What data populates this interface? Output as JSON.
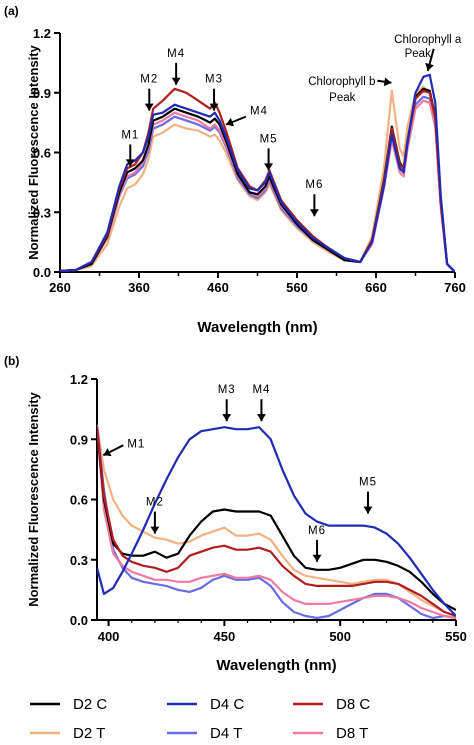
{
  "legend": [
    {
      "name": "D2 C",
      "color": "#000000"
    },
    {
      "name": "D2 T",
      "color": "#f4b183"
    },
    {
      "name": "D4 C",
      "color": "#1f2bb5"
    },
    {
      "name": "D4 T",
      "color": "#6b6be8"
    },
    {
      "name": "D8 C",
      "color": "#b01e1e"
    },
    {
      "name": "D8 T",
      "color": "#f07aa0"
    }
  ],
  "chart_data": [
    {
      "panel_label": "(a)",
      "type": "line",
      "xlabel": "Wavelength (nm)",
      "ylabel": "Normalized Fluorescence Intensity",
      "xlim": [
        260,
        760
      ],
      "ylim": [
        0,
        1.2
      ],
      "xticks": [
        "260",
        "360",
        "460",
        "560",
        "660",
        "760"
      ],
      "yticks": [
        "0.0",
        "0.3",
        "0.6",
        "0.9",
        "1.2"
      ],
      "x": [
        260,
        280,
        300,
        320,
        335,
        345,
        355,
        365,
        372,
        378,
        390,
        405,
        420,
        435,
        450,
        456,
        462,
        470,
        485,
        500,
        510,
        520,
        525,
        530,
        540,
        560,
        580,
        600,
        620,
        640,
        655,
        670,
        680,
        690,
        695,
        700,
        710,
        720,
        728,
        735,
        742,
        750,
        760
      ],
      "series": [
        {
          "name": "D2 C",
          "color": "#000000",
          "values": [
            0.005,
            0.01,
            0.04,
            0.18,
            0.4,
            0.5,
            0.52,
            0.56,
            0.64,
            0.76,
            0.78,
            0.82,
            0.8,
            0.78,
            0.75,
            0.77,
            0.74,
            0.66,
            0.49,
            0.4,
            0.39,
            0.43,
            0.48,
            0.43,
            0.34,
            0.24,
            0.16,
            0.11,
            0.06,
            0.05,
            0.16,
            0.46,
            0.73,
            0.55,
            0.52,
            0.66,
            0.88,
            0.92,
            0.91,
            0.78,
            0.35,
            0.04,
            0.0
          ]
        },
        {
          "name": "D2 T",
          "color": "#f4b183",
          "values": [
            0.005,
            0.01,
            0.03,
            0.14,
            0.33,
            0.42,
            0.44,
            0.49,
            0.57,
            0.68,
            0.7,
            0.74,
            0.72,
            0.71,
            0.68,
            0.69,
            0.66,
            0.6,
            0.46,
            0.38,
            0.36,
            0.4,
            0.44,
            0.4,
            0.31,
            0.22,
            0.15,
            0.1,
            0.06,
            0.05,
            0.18,
            0.52,
            0.91,
            0.62,
            0.58,
            0.73,
            0.9,
            0.93,
            0.9,
            0.77,
            0.34,
            0.04,
            0.0
          ]
        },
        {
          "name": "D4 C",
          "color": "#1f2bb5",
          "values": [
            0.005,
            0.01,
            0.05,
            0.2,
            0.43,
            0.54,
            0.56,
            0.6,
            0.68,
            0.79,
            0.8,
            0.84,
            0.82,
            0.8,
            0.78,
            0.8,
            0.76,
            0.68,
            0.51,
            0.42,
            0.41,
            0.45,
            0.5,
            0.45,
            0.35,
            0.25,
            0.17,
            0.12,
            0.07,
            0.05,
            0.15,
            0.43,
            0.69,
            0.52,
            0.5,
            0.65,
            0.9,
            0.98,
            0.99,
            0.85,
            0.38,
            0.04,
            0.0
          ]
        },
        {
          "name": "D4 T",
          "color": "#6b6be8",
          "values": [
            0.005,
            0.01,
            0.04,
            0.17,
            0.38,
            0.47,
            0.49,
            0.53,
            0.61,
            0.72,
            0.74,
            0.78,
            0.76,
            0.74,
            0.71,
            0.73,
            0.7,
            0.63,
            0.47,
            0.39,
            0.37,
            0.41,
            0.46,
            0.41,
            0.32,
            0.23,
            0.16,
            0.11,
            0.06,
            0.05,
            0.15,
            0.44,
            0.7,
            0.53,
            0.51,
            0.64,
            0.84,
            0.88,
            0.87,
            0.75,
            0.33,
            0.04,
            0.0
          ]
        },
        {
          "name": "D8 C",
          "color": "#b01e1e",
          "values": [
            0.005,
            0.01,
            0.05,
            0.19,
            0.42,
            0.52,
            0.54,
            0.6,
            0.7,
            0.82,
            0.86,
            0.92,
            0.9,
            0.86,
            0.82,
            0.85,
            0.8,
            0.71,
            0.52,
            0.43,
            0.41,
            0.46,
            0.51,
            0.46,
            0.36,
            0.26,
            0.18,
            0.12,
            0.07,
            0.05,
            0.16,
            0.45,
            0.72,
            0.54,
            0.52,
            0.66,
            0.87,
            0.91,
            0.9,
            0.77,
            0.35,
            0.04,
            0.0
          ]
        },
        {
          "name": "D8 T",
          "color": "#f07aa0",
          "values": [
            0.005,
            0.01,
            0.04,
            0.17,
            0.39,
            0.48,
            0.5,
            0.55,
            0.63,
            0.74,
            0.76,
            0.8,
            0.78,
            0.76,
            0.72,
            0.74,
            0.71,
            0.64,
            0.48,
            0.4,
            0.38,
            0.42,
            0.47,
            0.42,
            0.33,
            0.24,
            0.16,
            0.11,
            0.06,
            0.05,
            0.14,
            0.42,
            0.66,
            0.5,
            0.48,
            0.62,
            0.82,
            0.86,
            0.85,
            0.73,
            0.32,
            0.04,
            0.0
          ]
        }
      ],
      "annotations": [
        {
          "text": "M1",
          "x": 349,
          "y": 0.52,
          "dir": "down"
        },
        {
          "text": "M2",
          "x": 373,
          "y": 0.8,
          "dir": "down"
        },
        {
          "text": "M4",
          "x": 407,
          "y": 0.93,
          "dir": "down"
        },
        {
          "text": "M3",
          "x": 455,
          "y": 0.8,
          "dir": "down"
        },
        {
          "text": "M4",
          "x": 465,
          "y": 0.74,
          "dir": "left"
        },
        {
          "text": "M5",
          "x": 524,
          "y": 0.5,
          "dir": "down"
        },
        {
          "text": "M6",
          "x": 582,
          "y": 0.27,
          "dir": "down"
        },
        {
          "text": "Chlorophyll b",
          "x": 682,
          "y": 0.92,
          "dir": "right"
        },
        {
          "text": "Peak",
          "x": null,
          "y": null,
          "dir": null
        },
        {
          "text": "Chlorophyll a",
          "x": 728,
          "y": 1.0,
          "dir": "down"
        },
        {
          "text": "Peak",
          "x": null,
          "y": null,
          "dir": null
        }
      ]
    },
    {
      "panel_label": "(b)",
      "type": "line",
      "xlabel": "Wavelength (nm)",
      "ylabel": "Normalized Fluorescence Intensity",
      "xlim": [
        395,
        550
      ],
      "ylim": [
        0,
        1.2
      ],
      "xticks": [
        "400",
        "450",
        "500",
        "550"
      ],
      "yticks": [
        "0.0",
        "0.3",
        "0.6",
        "0.9",
        "1.2"
      ],
      "x": [
        395,
        398,
        402,
        406,
        410,
        415,
        420,
        425,
        430,
        435,
        440,
        445,
        450,
        455,
        460,
        465,
        470,
        475,
        480,
        485,
        490,
        495,
        500,
        505,
        510,
        515,
        520,
        525,
        530,
        535,
        540,
        545,
        550
      ],
      "series": [
        {
          "name": "D2 C",
          "color": "#000000",
          "values": [
            0.95,
            0.6,
            0.38,
            0.33,
            0.32,
            0.32,
            0.34,
            0.31,
            0.33,
            0.42,
            0.49,
            0.54,
            0.55,
            0.54,
            0.54,
            0.54,
            0.52,
            0.42,
            0.32,
            0.26,
            0.25,
            0.25,
            0.26,
            0.28,
            0.3,
            0.3,
            0.29,
            0.27,
            0.24,
            0.19,
            0.13,
            0.08,
            0.05
          ]
        },
        {
          "name": "D2 T",
          "color": "#f4b183",
          "values": [
            0.97,
            0.75,
            0.6,
            0.52,
            0.47,
            0.44,
            0.41,
            0.4,
            0.38,
            0.39,
            0.42,
            0.44,
            0.46,
            0.42,
            0.42,
            0.43,
            0.4,
            0.32,
            0.25,
            0.22,
            0.21,
            0.2,
            0.19,
            0.18,
            0.19,
            0.2,
            0.2,
            0.18,
            0.14,
            0.1,
            0.07,
            0.04,
            0.02
          ]
        },
        {
          "name": "D4 C",
          "color": "#1f2bb5",
          "values": [
            0.26,
            0.13,
            0.16,
            0.24,
            0.33,
            0.45,
            0.58,
            0.7,
            0.81,
            0.9,
            0.94,
            0.95,
            0.96,
            0.95,
            0.95,
            0.96,
            0.9,
            0.75,
            0.62,
            0.53,
            0.49,
            0.47,
            0.47,
            0.47,
            0.47,
            0.46,
            0.43,
            0.38,
            0.31,
            0.23,
            0.15,
            0.08,
            0.02
          ]
        },
        {
          "name": "D4 T",
          "color": "#6b6be8",
          "values": [
            0.97,
            0.65,
            0.35,
            0.26,
            0.21,
            0.19,
            0.18,
            0.17,
            0.15,
            0.14,
            0.16,
            0.2,
            0.22,
            0.2,
            0.2,
            0.21,
            0.17,
            0.09,
            0.04,
            0.02,
            0.01,
            0.02,
            0.05,
            0.08,
            0.11,
            0.13,
            0.13,
            0.11,
            0.07,
            0.03,
            0.01,
            0.02,
            0.01
          ]
        },
        {
          "name": "D8 C",
          "color": "#b01e1e",
          "values": [
            0.96,
            0.62,
            0.4,
            0.32,
            0.29,
            0.27,
            0.26,
            0.24,
            0.26,
            0.32,
            0.34,
            0.36,
            0.37,
            0.35,
            0.35,
            0.36,
            0.34,
            0.27,
            0.22,
            0.18,
            0.17,
            0.17,
            0.17,
            0.17,
            0.18,
            0.19,
            0.19,
            0.18,
            0.15,
            0.12,
            0.08,
            0.04,
            0.02
          ]
        },
        {
          "name": "D8 T",
          "color": "#f07aa0",
          "values": [
            0.96,
            0.55,
            0.33,
            0.27,
            0.24,
            0.22,
            0.2,
            0.2,
            0.19,
            0.19,
            0.21,
            0.22,
            0.23,
            0.21,
            0.21,
            0.22,
            0.2,
            0.14,
            0.1,
            0.08,
            0.08,
            0.08,
            0.09,
            0.1,
            0.11,
            0.12,
            0.12,
            0.11,
            0.09,
            0.06,
            0.04,
            0.02,
            0.01
          ]
        }
      ],
      "annotations": [
        {
          "text": "M1",
          "x": 396,
          "y": 0.9,
          "dir": "left"
        },
        {
          "text": "M2",
          "x": 420,
          "y": 0.42,
          "dir": "down"
        },
        {
          "text": "M3",
          "x": 451,
          "y": 0.98,
          "dir": "down"
        },
        {
          "text": "M4",
          "x": 466,
          "y": 0.98,
          "dir": "down"
        },
        {
          "text": "M6",
          "x": 490,
          "y": 0.28,
          "dir": "down"
        },
        {
          "text": "M5",
          "x": 512,
          "y": 0.52,
          "dir": "down"
        }
      ]
    }
  ]
}
